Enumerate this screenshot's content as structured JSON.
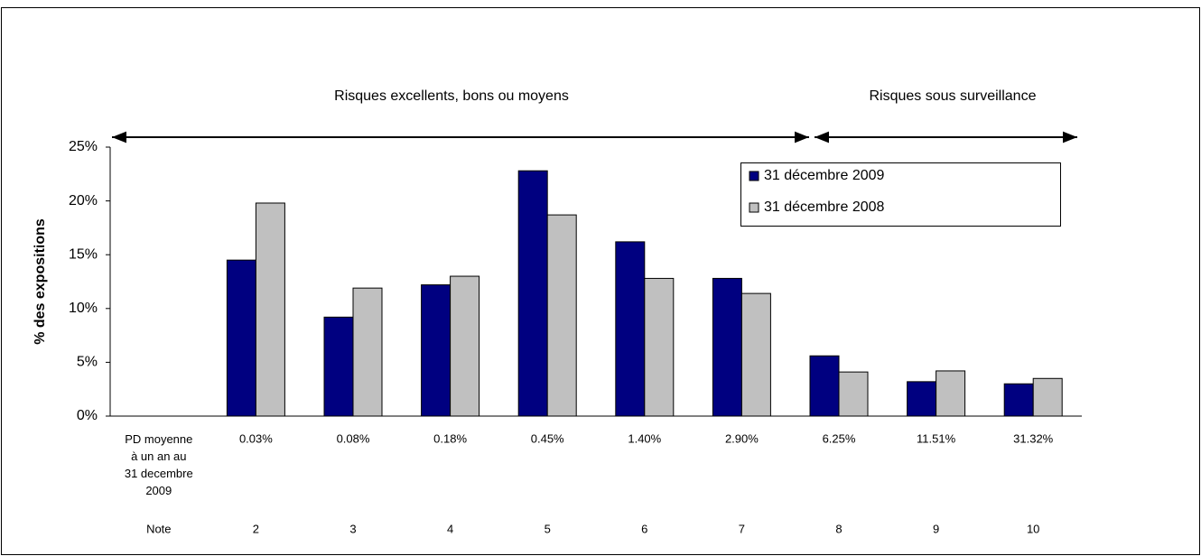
{
  "chart_data": {
    "type": "bar",
    "y_label": "% des expositions",
    "annotations": [
      "Risques excellents, bons ou moyens",
      "Risques sous surveillance"
    ],
    "categories": [
      "PD moyenne à un an au 31 decembre 2009",
      "0.03%",
      "0.08%",
      "0.18%",
      "0.45%",
      "1.40%",
      "2.90%",
      "6.25%",
      "11.51%",
      "31.32%"
    ],
    "notes": [
      "Note",
      "2",
      "3",
      "4",
      "5",
      "6",
      "7",
      "8",
      "9",
      "10"
    ],
    "series": [
      {
        "name": "31 décembre 2009",
        "color": "#000080",
        "values": [
          null,
          14.5,
          9.2,
          12.2,
          22.8,
          16.2,
          12.8,
          5.6,
          3.2,
          3.0
        ]
      },
      {
        "name": "31 décembre 2008",
        "color": "#c0c0c0",
        "values": [
          null,
          19.8,
          11.9,
          13.0,
          18.7,
          12.8,
          11.4,
          4.1,
          4.2,
          3.5
        ]
      }
    ],
    "ylim": [
      0,
      25
    ],
    "yticks": [
      {
        "value": 0,
        "label": "0%"
      },
      {
        "value": 5,
        "label": "5%"
      },
      {
        "value": 10,
        "label": "10%"
      },
      {
        "value": 15,
        "label": "15%"
      },
      {
        "value": 20,
        "label": "20%"
      },
      {
        "value": 25,
        "label": "25%"
      }
    ],
    "legend": "top-right",
    "grid": false
  }
}
